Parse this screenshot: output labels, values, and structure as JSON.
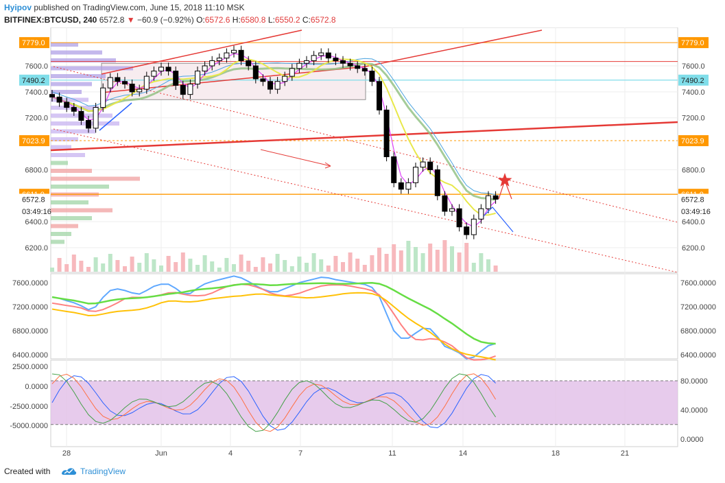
{
  "header": {
    "author": "Hyipov",
    "published": "published on TradingView.com, June 15, 2018 11:10 MSK",
    "symbol": "BITFINEX:BTCUSD, 240",
    "last": "6572.8",
    "change_arrow": "▼",
    "change": "−60.9 (−0.92%)",
    "o_label": "O:",
    "o_value": "6572.6",
    "h_label": "H:",
    "h_value": "6580.8",
    "l_label": "L:",
    "l_value": "6550.2",
    "c_label": "C:",
    "c_value": "6572.8"
  },
  "footer": {
    "created_with": "Created with",
    "brand": "TradingView"
  },
  "colors": {
    "up": "#ffffff",
    "down": "#000000",
    "red_line": "#e53935",
    "blue": "#2962ff",
    "orange_tag": "#ff9800",
    "teal_tag": "#80deea",
    "purple_zone": "#e1bee7"
  },
  "chart_data": [
    {
      "type": "candlestick",
      "name": "BITFINEX:BTCUSD, 240",
      "ylim": [
        6050,
        7850
      ],
      "y_ticks": [
        6200,
        6400,
        6800,
        7200,
        7400,
        7600
      ],
      "y_tick_labels": [
        "6200.0",
        "6400.0",
        "6800.0",
        "7200.0",
        "7400.0",
        "7600.0"
      ],
      "x_tick_labels": [
        "28",
        "Jun",
        "4",
        "7",
        "11",
        "14",
        "18",
        "21"
      ],
      "price_tags": [
        {
          "label": "7779.0",
          "value": 7779.0,
          "color": "orange"
        },
        {
          "label": "7490.2",
          "value": 7490.2,
          "color": "teal"
        },
        {
          "label": "7023.9",
          "value": 7023.9,
          "color": "orange"
        },
        {
          "label": "6611.0",
          "value": 6611.0,
          "color": "orange"
        },
        {
          "label": "6572.8",
          "value": 6572.8,
          "color": "plain"
        },
        {
          "label": "03:49:16",
          "value": 6480,
          "color": "plain"
        }
      ],
      "closes": [
        7360,
        7320,
        7280,
        7250,
        7180,
        7120,
        7280,
        7430,
        7510,
        7480,
        7460,
        7400,
        7420,
        7520,
        7560,
        7590,
        7560,
        7450,
        7380,
        7460,
        7560,
        7600,
        7640,
        7660,
        7700,
        7720,
        7640,
        7600,
        7500,
        7480,
        7420,
        7480,
        7520,
        7580,
        7620,
        7640,
        7680,
        7700,
        7660,
        7640,
        7620,
        7600,
        7580,
        7560,
        7480,
        7260,
        6900,
        6700,
        6650,
        6700,
        6820,
        6860,
        6800,
        6600,
        6480,
        6500,
        6360,
        6300,
        6420,
        6500,
        6600,
        6572.8
      ]
    },
    {
      "type": "line",
      "name": "moving averages panel",
      "ylim": [
        6300,
        7800
      ],
      "y_ticks": [
        6400,
        6800,
        7200,
        7600
      ],
      "y_tick_labels": [
        "6400.0000",
        "6800.0000",
        "7200.0000",
        "7600.0000"
      ]
    },
    {
      "type": "line",
      "name": "oscillator panel",
      "left_ticks": [
        2500,
        0,
        -2500,
        -5000
      ],
      "left_tick_labels": [
        "2500.0000",
        "0.0000",
        "-2500.0000",
        "-5000.0000"
      ],
      "right_ticks": [
        80,
        40,
        0
      ],
      "right_tick_labels": [
        "80.0000",
        "40.0000",
        "0.0000"
      ],
      "band": [
        20,
        80
      ]
    }
  ]
}
